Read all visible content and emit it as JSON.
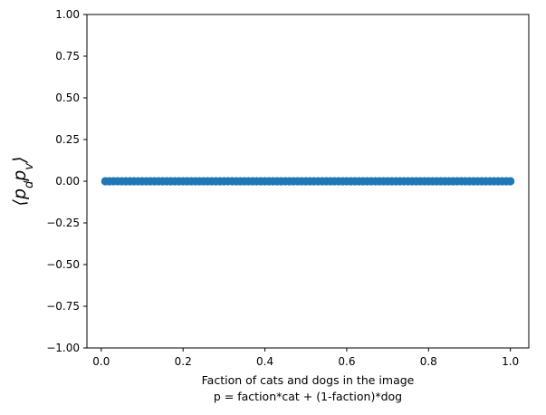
{
  "chart_data": {
    "type": "scatter",
    "title": "",
    "xlabel_lines": [
      "Faction of cats and dogs in the image",
      "p = faction*cat + (1-faction)*dog"
    ],
    "ylabel": "⟨p_d p_v⟩",
    "xlim": [
      -0.035,
      1.045
    ],
    "ylim": [
      -1.0,
      1.0
    ],
    "xticks": [
      0.0,
      0.2,
      0.4,
      0.6,
      0.8,
      1.0
    ],
    "xtick_labels": [
      "0.0",
      "0.2",
      "0.4",
      "0.6",
      "0.8",
      "1.0"
    ],
    "yticks": [
      -1.0,
      -0.75,
      -0.5,
      -0.25,
      0.0,
      0.25,
      0.5,
      0.75,
      1.0
    ],
    "ytick_labels": [
      "−1.00",
      "−0.75",
      "−0.50",
      "−0.25",
      "0.00",
      "0.25",
      "0.50",
      "0.75",
      "1.00"
    ],
    "grid": false,
    "series": [
      {
        "color": "#1f77b4",
        "x_start": 0.01,
        "x_end": 1.0,
        "x_step": 0.01,
        "y_constant": 0.0
      }
    ]
  }
}
